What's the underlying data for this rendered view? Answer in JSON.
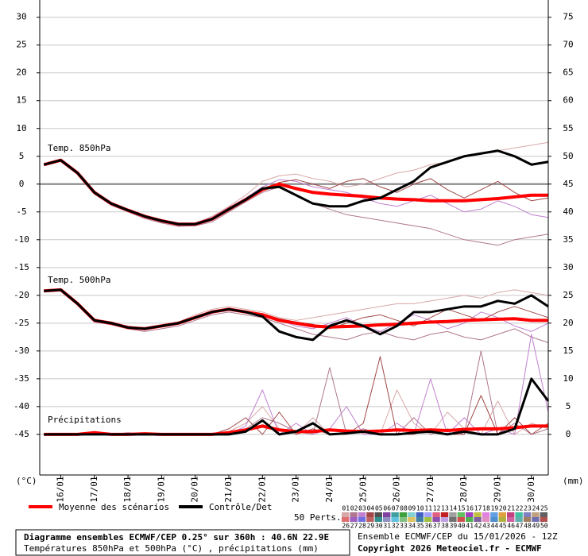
{
  "chart_data": {
    "type": "line",
    "footer": {
      "title": "Diagramme ensembles ECMWF/CEP 0.25° sur 360h : 40.6N 22.9E",
      "subtitle": "Températures 850hPa et 500hPa (°C) , précipitations (mm)",
      "run": "Ensemble ECMWF/CEP du 15/01/2026 - 12Z",
      "copyright": "Copyright 2026 Meteociel.fr - ECMWF"
    },
    "annotations": {
      "t850": "Temp. 850hPa",
      "t500": "Temp. 500hPa",
      "precip": "Précipitations"
    },
    "ylabel": "(°C)",
    "y2label": "(mm)",
    "xlim": [
      -3,
      360
    ],
    "xticks": [
      {
        "value": 12,
        "label": "16/01"
      },
      {
        "value": 36,
        "label": "17/01"
      },
      {
        "value": 60,
        "label": "18/01"
      },
      {
        "value": 84,
        "label": "19/01"
      },
      {
        "value": 108,
        "label": "20/01"
      },
      {
        "value": 132,
        "label": "21/01"
      },
      {
        "value": 156,
        "label": "22/01"
      },
      {
        "value": 180,
        "label": "23/01"
      },
      {
        "value": 204,
        "label": "24/01"
      },
      {
        "value": 228,
        "label": "25/01"
      },
      {
        "value": 252,
        "label": "26/01"
      },
      {
        "value": 276,
        "label": "27/01"
      },
      {
        "value": 300,
        "label": "28/01"
      },
      {
        "value": 324,
        "label": "29/01"
      },
      {
        "value": 348,
        "label": "30/01"
      }
    ],
    "ylim": [
      -52.3,
      33.1
    ],
    "yticks": [
      30,
      25,
      20,
      15,
      10,
      5,
      0,
      -5,
      -10,
      -15,
      -20,
      -25,
      -30,
      -35,
      -40,
      -45
    ],
    "y2lim": [
      -7.3,
      78.1
    ],
    "y2ticks": [
      75,
      70,
      65,
      60,
      55,
      50,
      45,
      40,
      35,
      30,
      25,
      20,
      15,
      10,
      5,
      0
    ],
    "grid": true,
    "x": [
      0,
      12,
      24,
      36,
      48,
      60,
      72,
      84,
      96,
      108,
      120,
      132,
      144,
      156,
      168,
      180,
      192,
      204,
      216,
      228,
      240,
      252,
      264,
      276,
      288,
      300,
      312,
      324,
      336,
      348,
      360
    ],
    "series": [
      {
        "name": "Moyenne des scénarios",
        "color": "#ff0000",
        "t850": [
          3.5,
          4.3,
          2.0,
          -1.5,
          -3.5,
          -4.7,
          -5.8,
          -6.6,
          -7.2,
          -7.2,
          -6.3,
          -4.5,
          -2.8,
          -1.0,
          0.0,
          -0.8,
          -1.5,
          -1.8,
          -2.0,
          -2.2,
          -2.5,
          -2.7,
          -2.8,
          -3.0,
          -3.0,
          -3.0,
          -2.8,
          -2.6,
          -2.3,
          -2.0,
          -2.0
        ],
        "t500": [
          -19.2,
          -19.0,
          -21.5,
          -24.5,
          -25.0,
          -25.8,
          -26.0,
          -25.5,
          -25.0,
          -24.0,
          -23.0,
          -22.5,
          -23.0,
          -23.5,
          -24.5,
          -25.0,
          -25.5,
          -25.7,
          -25.6,
          -25.5,
          -25.3,
          -25.2,
          -25.0,
          -24.8,
          -24.7,
          -24.5,
          -24.4,
          -24.3,
          -24.2,
          -24.5,
          -24.5
        ],
        "precip": [
          0,
          0,
          0,
          0.3,
          0,
          0,
          0.1,
          0,
          0,
          0,
          0,
          0.3,
          0.8,
          1.5,
          0.8,
          0.5,
          0.5,
          0.8,
          0.6,
          0.5,
          0.6,
          0.8,
          0.7,
          0.8,
          0.7,
          0.9,
          1.0,
          1.0,
          1.2,
          1.5,
          1.5
        ]
      },
      {
        "name": "Contrôle/Det",
        "color": "#000000",
        "t850": [
          3.5,
          4.3,
          2.0,
          -1.5,
          -3.5,
          -4.7,
          -5.8,
          -6.6,
          -7.2,
          -7.2,
          -6.3,
          -4.5,
          -2.8,
          -0.8,
          -0.5,
          -2.0,
          -3.5,
          -4.0,
          -4.0,
          -3.0,
          -2.5,
          -1.0,
          0.5,
          3.0,
          4.0,
          5.0,
          5.5,
          6.0,
          5.0,
          3.5,
          4.0
        ],
        "t500": [
          -19.2,
          -19.0,
          -21.5,
          -24.5,
          -25.0,
          -25.8,
          -26.0,
          -25.5,
          -25.0,
          -24.0,
          -23.0,
          -22.5,
          -23.0,
          -23.8,
          -26.5,
          -27.5,
          -28.0,
          -25.5,
          -24.5,
          -25.5,
          -27.0,
          -25.5,
          -23.0,
          -23.0,
          -22.5,
          -22.0,
          -22.0,
          -21.0,
          -21.5,
          -20.0,
          -22.0
        ],
        "precip": [
          0,
          0,
          0,
          0,
          0,
          0,
          0,
          0,
          0,
          0,
          0,
          0,
          0.5,
          2.5,
          0,
          0.5,
          2,
          0,
          0.2,
          0.5,
          0,
          0,
          0.3,
          0.5,
          0,
          0.5,
          0,
          0,
          1,
          10,
          6
        ]
      }
    ],
    "perturbations": {
      "label": "50 Perts.",
      "members": [
        {
          "name": "01",
          "color": "#d8a8a8",
          "t850": [
            3.5,
            4.2,
            2.2,
            -1.2,
            -3.3,
            -4.5,
            -5.6,
            -6.8,
            -7.5,
            -7.0,
            -5.8,
            -4.0,
            -2.0,
            0.5,
            1.5,
            1.8,
            1.0,
            0.5,
            -0.5,
            0.0,
            1.0,
            2.0,
            2.5,
            3.5,
            4.0,
            5.0,
            5.5,
            6.0,
            6.5,
            7.0,
            7.5
          ],
          "t500": [
            -19.2,
            -19.0,
            -21.3,
            -24.2,
            -25.0,
            -25.5,
            -26.0,
            -25.5,
            -24.8,
            -23.5,
            -22.5,
            -22.0,
            -22.5,
            -23.0,
            -24.0,
            -24.5,
            -24.0,
            -23.5,
            -23.0,
            -22.5,
            -22.0,
            -21.5,
            -21.5,
            -21.0,
            -20.5,
            -20.0,
            -20.5,
            -19.5,
            -19.0,
            -19.5,
            -20.0
          ],
          "precip": [
            0,
            0,
            0,
            0.2,
            0,
            0,
            0.1,
            0,
            0,
            0,
            0,
            0.5,
            2,
            5,
            1,
            0,
            3,
            0,
            0,
            1,
            0,
            8,
            2,
            0,
            4,
            1,
            0,
            6,
            0,
            2,
            1
          ]
        },
        {
          "name": "02",
          "color": "#b07890",
          "t850": [
            3.4,
            4.4,
            1.8,
            -1.8,
            -3.8,
            -5.0,
            -6.2,
            -7.0,
            -7.6,
            -7.5,
            -6.8,
            -5.0,
            -3.2,
            -1.5,
            -0.5,
            -2.0,
            -3.5,
            -4.5,
            -5.5,
            -6.0,
            -6.5,
            -7.0,
            -7.5,
            -8.0,
            -9.0,
            -10.0,
            -10.5,
            -11.0,
            -10.0,
            -9.5,
            -9.0
          ],
          "t500": [
            -19.2,
            -19.1,
            -21.8,
            -24.8,
            -25.3,
            -26.0,
            -26.5,
            -26.0,
            -25.5,
            -24.5,
            -23.5,
            -23.0,
            -23.5,
            -24.0,
            -25.0,
            -26.0,
            -27.0,
            -27.5,
            -28.0,
            -27.0,
            -26.5,
            -27.5,
            -28.0,
            -27.0,
            -26.5,
            -27.5,
            -28.0,
            -27.0,
            -26.0,
            -27.5,
            -28.5
          ],
          "precip": [
            0,
            0,
            0,
            0,
            0,
            0.3,
            0,
            0,
            0,
            0,
            0,
            0.3,
            1,
            3,
            2,
            0.5,
            0,
            12,
            0,
            1,
            0,
            0,
            3,
            0,
            1,
            0,
            15,
            0,
            2,
            0,
            1
          ]
        },
        {
          "name": "03",
          "color": "#c080d0",
          "t850": [
            3.6,
            4.3,
            2.1,
            -1.4,
            -3.4,
            -4.6,
            -5.7,
            -6.4,
            -7.0,
            -7.0,
            -6.0,
            -4.2,
            -2.5,
            -0.5,
            0.8,
            0.5,
            -0.5,
            -1.0,
            -1.5,
            -2.5,
            -3.5,
            -4.0,
            -3.0,
            -2.0,
            -3.5,
            -5.0,
            -4.5,
            -3.0,
            -4.0,
            -5.5,
            -6.0
          ],
          "t500": [
            -19.3,
            -18.9,
            -21.6,
            -24.6,
            -25.1,
            -25.8,
            -26.2,
            -25.6,
            -25.2,
            -24.2,
            -23.2,
            -22.7,
            -23.0,
            -23.8,
            -24.5,
            -25.5,
            -26.0,
            -25.0,
            -24.0,
            -25.5,
            -26.5,
            -25.0,
            -23.5,
            -24.5,
            -26.0,
            -25.0,
            -23.0,
            -24.0,
            -25.5,
            -26.5,
            -25.0
          ],
          "precip": [
            0,
            0,
            0,
            0.5,
            0,
            0,
            0,
            0,
            0,
            0,
            0,
            0,
            1.5,
            8,
            0,
            2,
            0,
            1,
            5,
            0,
            0,
            2,
            0,
            10,
            0,
            3,
            0,
            1,
            0,
            18,
            4
          ]
        },
        {
          "name": "04",
          "color": "#a04848",
          "t850": [
            3.5,
            4.3,
            1.9,
            -1.6,
            -3.6,
            -4.8,
            -6.0,
            -6.8,
            -7.3,
            -7.3,
            -6.5,
            -4.8,
            -3.0,
            -1.2,
            0.3,
            0.8,
            0.0,
            -0.8,
            0.5,
            1.0,
            -0.5,
            -1.5,
            0.0,
            1.0,
            -1.0,
            -2.5,
            -1.0,
            0.5,
            -1.5,
            -3.0,
            -2.5
          ],
          "t500": [
            -19.1,
            -19.0,
            -21.4,
            -24.4,
            -24.9,
            -25.6,
            -25.9,
            -25.4,
            -24.9,
            -23.8,
            -22.8,
            -22.3,
            -22.8,
            -23.3,
            -24.2,
            -24.8,
            -25.2,
            -26.0,
            -25.0,
            -24.0,
            -23.5,
            -24.5,
            -25.5,
            -24.0,
            -22.5,
            -23.5,
            -24.5,
            -23.0,
            -22.0,
            -23.0,
            -24.0
          ],
          "precip": [
            0,
            0,
            0,
            0,
            0,
            0,
            0.2,
            0,
            0,
            0,
            0,
            1,
            3,
            0,
            4,
            0,
            1,
            0,
            0,
            2,
            14,
            0,
            0,
            1,
            0,
            0,
            7,
            0,
            3,
            0,
            2
          ]
        },
        {
          "name": "05",
          "color": "#505050"
        },
        {
          "name": "06",
          "color": "#8040a0"
        },
        {
          "name": "07",
          "color": "#40a0a0"
        },
        {
          "name": "08",
          "color": "#40a040"
        },
        {
          "name": "09",
          "color": "#80d0d0"
        },
        {
          "name": "10",
          "color": "#4060c0"
        },
        {
          "name": "11",
          "color": "#a0a0ff"
        },
        {
          "name": "12",
          "color": "#e06080"
        },
        {
          "name": "13",
          "color": "#c02020"
        },
        {
          "name": "14",
          "color": "#a0a0a0"
        },
        {
          "name": "15",
          "color": "#60c060"
        },
        {
          "name": "16",
          "color": "#a040c0"
        },
        {
          "name": "17",
          "color": "#c0c040"
        },
        {
          "name": "18",
          "color": "#e080e0"
        },
        {
          "name": "19",
          "color": "#60a0e0"
        },
        {
          "name": "20",
          "color": "#e0a040"
        },
        {
          "name": "21",
          "color": "#c04080"
        },
        {
          "name": "22",
          "color": "#40c0a0"
        },
        {
          "name": "23",
          "color": "#8080c0"
        },
        {
          "name": "24",
          "color": "#c0a080"
        },
        {
          "name": "25",
          "color": "#606060"
        },
        {
          "name": "26",
          "color": "#e07070"
        },
        {
          "name": "27",
          "color": "#a060c0"
        },
        {
          "name": "28",
          "color": "#7070e0"
        },
        {
          "name": "29",
          "color": "#c06060"
        },
        {
          "name": "30",
          "color": "#309090"
        },
        {
          "name": "31",
          "color": "#9090c0"
        },
        {
          "name": "32",
          "color": "#60c0e0"
        },
        {
          "name": "33",
          "color": "#80c080"
        },
        {
          "name": "34",
          "color": "#e0c060"
        },
        {
          "name": "35",
          "color": "#4080a0"
        },
        {
          "name": "36",
          "color": "#a0c040"
        },
        {
          "name": "37",
          "color": "#9050b0"
        },
        {
          "name": "38",
          "color": "#c0a0e0"
        },
        {
          "name": "39",
          "color": "#707070"
        },
        {
          "name": "40",
          "color": "#d05050"
        },
        {
          "name": "41",
          "color": "#50b050"
        },
        {
          "name": "42",
          "color": "#8060a0"
        },
        {
          "name": "43",
          "color": "#e090c0"
        },
        {
          "name": "44",
          "color": "#5090d0"
        },
        {
          "name": "45",
          "color": "#b0b040"
        },
        {
          "name": "46",
          "color": "#d060a0"
        },
        {
          "name": "47",
          "color": "#60b0b0"
        },
        {
          "name": "48",
          "color": "#a08060"
        },
        {
          "name": "49",
          "color": "#7070b0"
        },
        {
          "name": "50",
          "color": "#b05050"
        }
      ]
    }
  }
}
